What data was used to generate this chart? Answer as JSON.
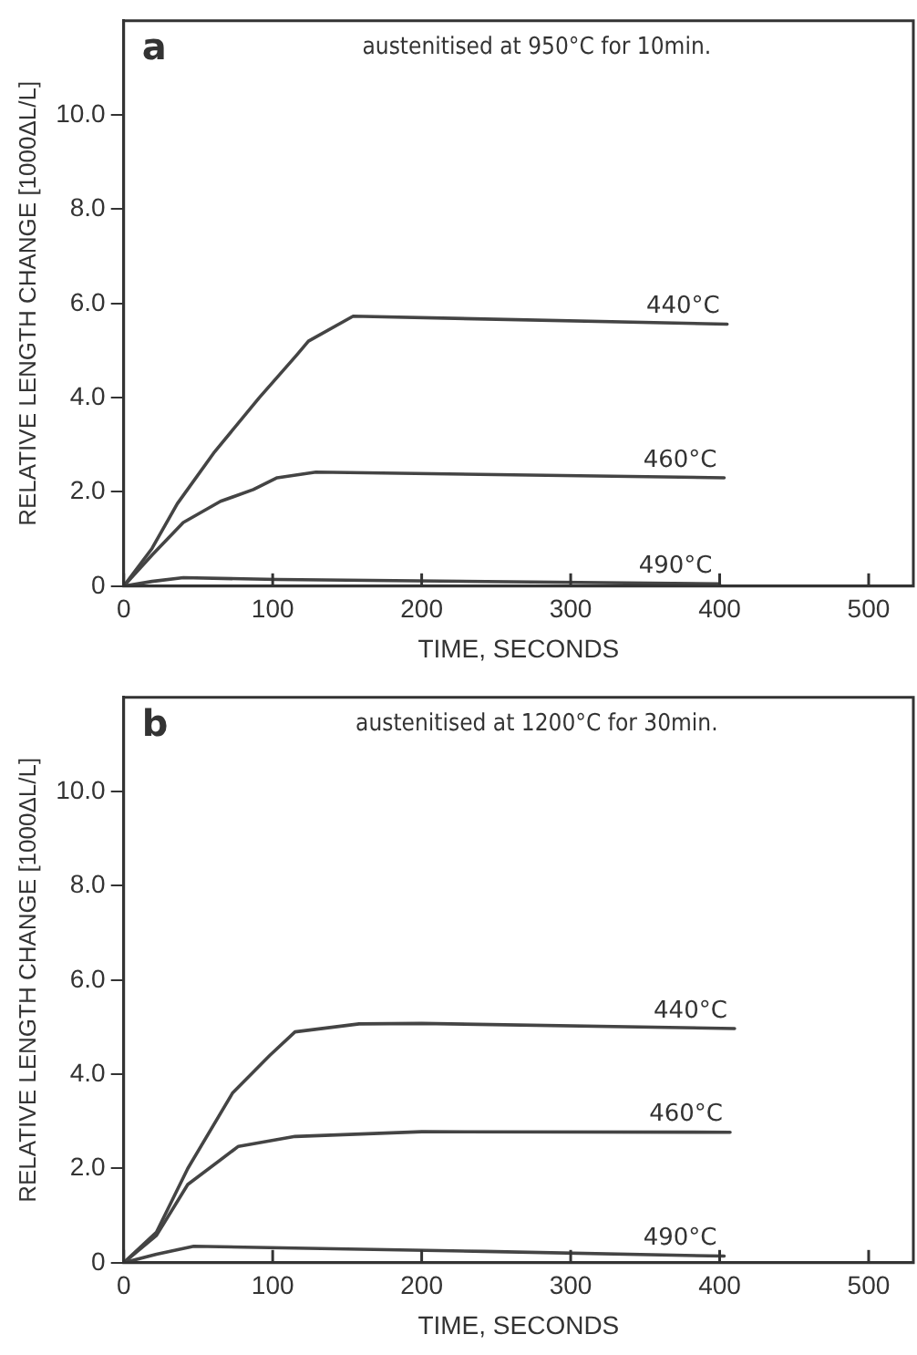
{
  "chart_data": [
    {
      "type": "line",
      "title": "a",
      "subtitle": "austenitised at 950°C for 10min.",
      "xlabel": "TIME, SECONDS",
      "ylabel": "RELATIVE LENGTH CHANGE [1000ΔL/L]",
      "xlim": [
        0,
        530
      ],
      "ylim": [
        0,
        12
      ],
      "xticks": [
        0,
        100,
        200,
        300,
        400,
        500
      ],
      "yticks": [
        0,
        {
          "value": 2,
          "label": "2.0"
        },
        {
          "value": 4,
          "label": "4.0"
        },
        {
          "value": 6,
          "label": "6.0"
        },
        {
          "value": 8,
          "label": "8.0"
        },
        {
          "value": 10,
          "label": "10.0"
        }
      ],
      "grid": false,
      "legend": false,
      "marker": "none",
      "line_style": "solid",
      "series": [
        {
          "name": "440°C",
          "color": "#444444",
          "x": [
            0,
            19,
            36,
            61,
            91,
            116,
            124,
            154,
            405
          ],
          "values": [
            0,
            0.8,
            1.75,
            2.85,
            4.0,
            4.9,
            5.2,
            5.73,
            5.56
          ]
        },
        {
          "name": "460°C",
          "color": "#444444",
          "x": [
            0,
            19,
            40,
            65,
            87,
            103,
            129,
            403
          ],
          "values": [
            0,
            0.66,
            1.35,
            1.8,
            2.05,
            2.3,
            2.42,
            2.3
          ]
        },
        {
          "name": "490°C",
          "color": "#444444",
          "x": [
            0,
            19,
            40,
            103,
            400
          ],
          "values": [
            0,
            0.1,
            0.18,
            0.14,
            0.05
          ]
        }
      ]
    },
    {
      "type": "line",
      "title": "b",
      "subtitle": "austenitised at 1200°C for 30min.",
      "xlabel": "TIME, SECONDS",
      "ylabel": "RELATIVE LENGTH CHANGE [1000ΔL/L]",
      "xlim": [
        0,
        530
      ],
      "ylim": [
        0,
        12
      ],
      "xticks": [
        0,
        100,
        200,
        300,
        400,
        500
      ],
      "yticks": [
        0,
        {
          "value": 2,
          "label": "2.0"
        },
        {
          "value": 4,
          "label": "4.0"
        },
        {
          "value": 6,
          "label": "6.0"
        },
        {
          "value": 8,
          "label": "8.0"
        },
        {
          "value": 10,
          "label": "10.0"
        }
      ],
      "grid": false,
      "legend": false,
      "marker": "none",
      "line_style": "solid",
      "series": [
        {
          "name": "440°C",
          "color": "#444444",
          "x": [
            0,
            22,
            43,
            73,
            98,
            115,
            158,
            200,
            410
          ],
          "values": [
            0,
            0.65,
            2.0,
            3.6,
            4.4,
            4.9,
            5.07,
            5.08,
            4.97
          ]
        },
        {
          "name": "460°C",
          "color": "#444444",
          "x": [
            0,
            22,
            43,
            77,
            115,
            200,
            407
          ],
          "values": [
            0,
            0.58,
            1.66,
            2.47,
            2.68,
            2.78,
            2.77
          ]
        },
        {
          "name": "490°C",
          "color": "#444444",
          "x": [
            0,
            22,
            47,
            115,
            242,
            403
          ],
          "values": [
            0,
            0.18,
            0.35,
            0.31,
            0.24,
            0.14
          ]
        }
      ]
    }
  ]
}
